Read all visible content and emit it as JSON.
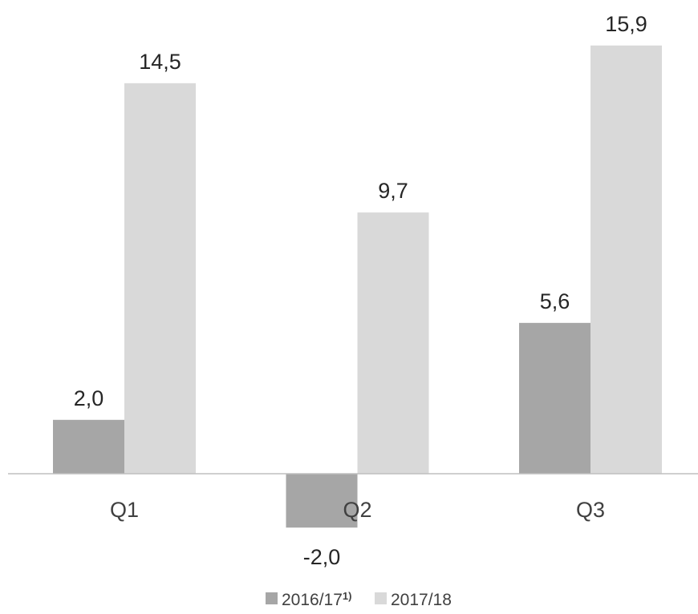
{
  "chart_data": {
    "type": "bar",
    "categories": [
      "Q1",
      "Q2",
      "Q3"
    ],
    "series": [
      {
        "name": "2016/17",
        "name_superscript": "1)",
        "values": [
          2.0,
          -2.0,
          5.6
        ],
        "labels": [
          "2,0",
          "-2,0",
          "5,6"
        ],
        "color": "#a6a6a6"
      },
      {
        "name": "2017/18",
        "values": [
          14.5,
          9.7,
          15.9
        ],
        "labels": [
          "14,5",
          "9,7",
          "15,9"
        ],
        "color": "#d9d9d9"
      }
    ],
    "ylim": [
      -2.0,
      15.9
    ],
    "grid": false,
    "axis_color": "#bfbfbf",
    "legend_position": "bottom-center"
  }
}
